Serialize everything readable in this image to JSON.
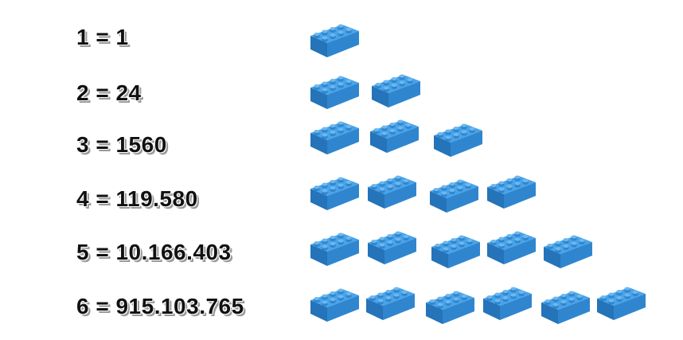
{
  "rows": [
    {
      "label": "1 = 1",
      "bricks": 1
    },
    {
      "label": "2 = 24",
      "bricks": 2
    },
    {
      "label": "3 = 1560",
      "bricks": 3
    },
    {
      "label": "4 = 119.580",
      "bricks": 4
    },
    {
      "label": "5 = 10.166.403",
      "bricks": 5
    },
    {
      "label": "6 = 915.103.765",
      "bricks": 6
    }
  ],
  "colors": {
    "brick_top": "#4aa3e8",
    "brick_front": "#2f86cf",
    "brick_side": "#2573b8"
  },
  "icons": {
    "brick": "lego-brick-2x4-icon"
  }
}
